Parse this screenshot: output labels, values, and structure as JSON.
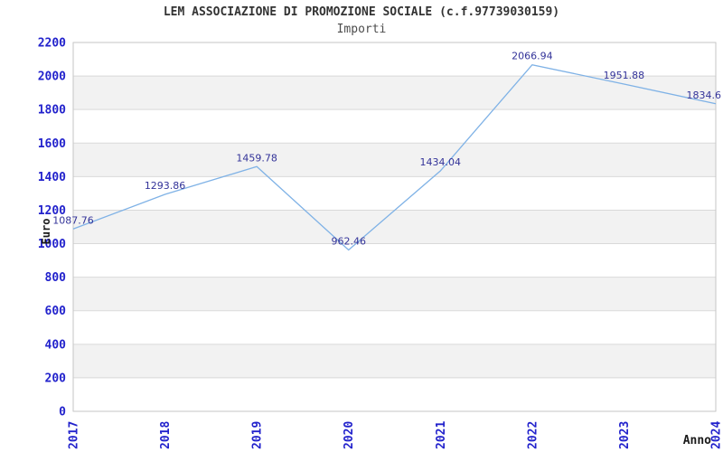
{
  "header": {
    "title": "LEM ASSOCIAZIONE DI PROMOZIONE SOCIALE (c.f.97739030159)",
    "subtitle": "Importi"
  },
  "chart_data": {
    "type": "line",
    "title": "LEM ASSOCIAZIONE DI PROMOZIONE SOCIALE (c.f.97739030159)",
    "subtitle": "Importi",
    "xlabel": "Anno",
    "ylabel": "Euro",
    "x": [
      "2017",
      "2018",
      "2019",
      "2020",
      "2021",
      "2022",
      "2023",
      "2024"
    ],
    "series": [
      {
        "name": "Importi",
        "values": [
          1087.76,
          1293.86,
          1459.78,
          962.46,
          1434.04,
          2066.94,
          1951.88,
          1834.6
        ]
      }
    ],
    "point_labels": [
      "1087.76",
      "1293.86",
      "1459.78",
      "962.46",
      "1434.04",
      "2066.94",
      "1951.88",
      "1834.6"
    ],
    "ylim": [
      0,
      2200
    ],
    "ytick_step": 200,
    "yticks": [
      "0",
      "200",
      "400",
      "600",
      "800",
      "1000",
      "1200",
      "1400",
      "1600",
      "1800",
      "2000",
      "2200"
    ],
    "grid": true,
    "legend": "none",
    "colors": {
      "line": "#7fb2e6",
      "tick_label": "#2222cc",
      "data_label": "#333399",
      "band": "#f2f2f2",
      "grid": "#d9d9d9",
      "border": "#c6c6c6"
    }
  }
}
